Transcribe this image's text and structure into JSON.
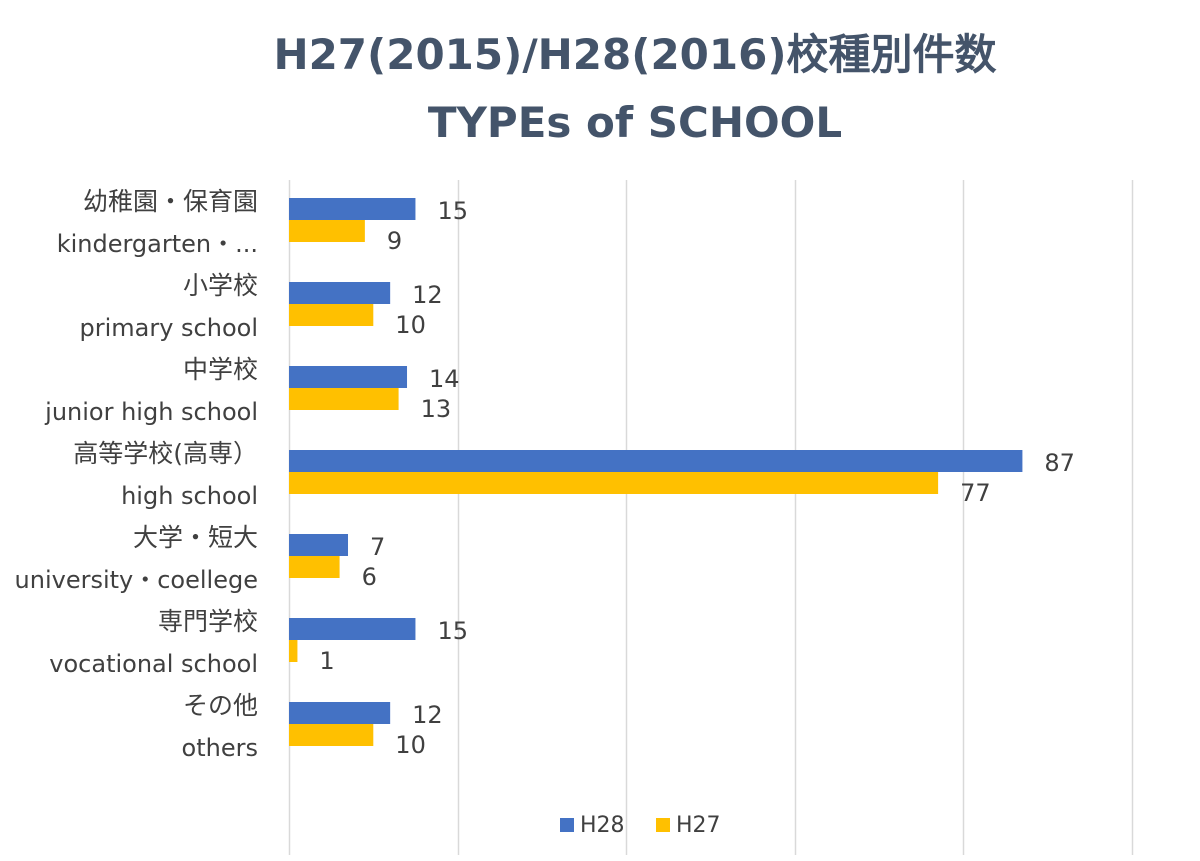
{
  "chart_data": {
    "type": "bar",
    "orientation": "horizontal",
    "title": "H27(2015)/H28(2016)校種別件数",
    "subtitle": "TYPEs of SCHOOL",
    "categories": [
      {
        "ja": "幼稚園・保育園",
        "en": "kindergarten・..."
      },
      {
        "ja": "小学校",
        "en": "primary school"
      },
      {
        "ja": "中学校",
        "en": "junior high school"
      },
      {
        "ja": "高等学校(高専）",
        "en": "high school"
      },
      {
        "ja": "大学・短大",
        "en": "university・coellege"
      },
      {
        "ja": "専門学校",
        "en": "vocational school"
      },
      {
        "ja": "その他",
        "en": "others"
      }
    ],
    "series": [
      {
        "name": "H28",
        "color": "#4472c4",
        "values": [
          15,
          12,
          14,
          87,
          7,
          15,
          12
        ]
      },
      {
        "name": "H27",
        "color": "#ffc000",
        "values": [
          9,
          10,
          13,
          77,
          6,
          1,
          10
        ]
      }
    ],
    "xlim": [
      0,
      100
    ],
    "grid": "vertical",
    "gridline_color": "#d9d9d9",
    "data_labels": true,
    "legend_position": "bottom"
  }
}
